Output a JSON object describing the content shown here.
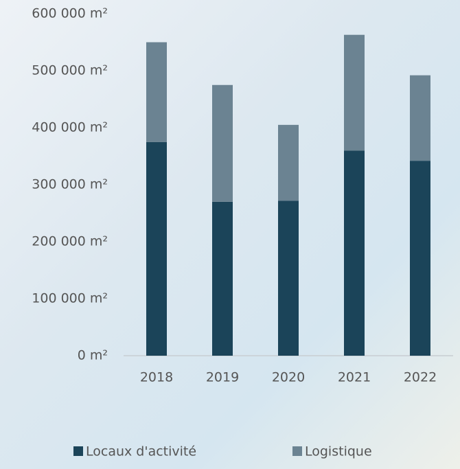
{
  "chart_data": {
    "type": "stacked-bar",
    "categories": [
      "2018",
      "2019",
      "2020",
      "2021",
      "2022"
    ],
    "series": [
      {
        "name": "Locaux d'activité",
        "color": "#1b4459",
        "values": [
          375000,
          270000,
          272000,
          360000,
          342000
        ]
      },
      {
        "name": "Logistique",
        "color": "#6b8392",
        "values": [
          175000,
          205000,
          133000,
          203000,
          150000
        ]
      }
    ],
    "ylim": [
      0,
      600000
    ],
    "yticks": [
      {
        "value": 0,
        "label": "0 m²"
      },
      {
        "value": 100000,
        "label": "100 000 m²"
      },
      {
        "value": 200000,
        "label": "200 000 m²"
      },
      {
        "value": 300000,
        "label": "300 000 m²"
      },
      {
        "value": 400000,
        "label": "400 000 m²"
      },
      {
        "value": 500000,
        "label": "500 000 m²"
      },
      {
        "value": 600000,
        "label": "600 000 m²"
      }
    ],
    "grid": false,
    "legend": "bottom"
  }
}
